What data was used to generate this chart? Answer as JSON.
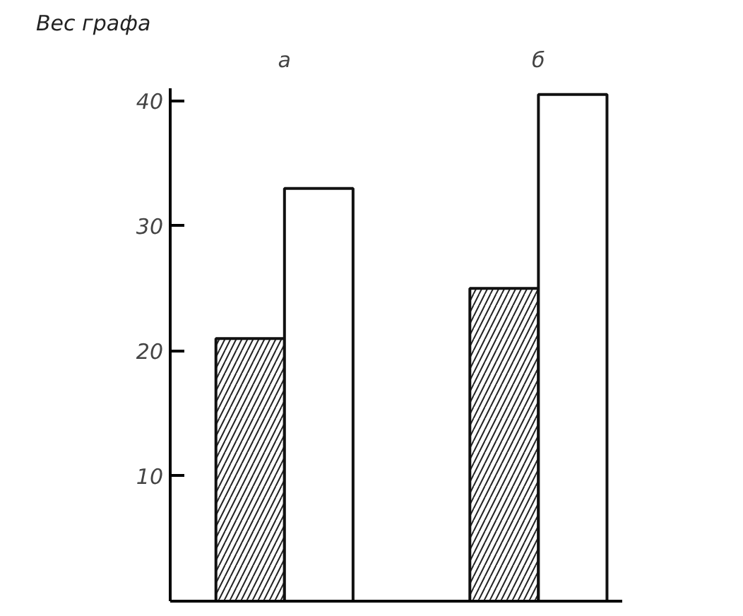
{
  "chart_data": {
    "type": "bar",
    "ylabel": "Вес графа",
    "categories": [
      "а",
      "б"
    ],
    "series": [
      {
        "color": "#ffffff",
        "values": [
          21,
          25
        ]
      },
      {
        "color": "#ffffff",
        "values": [
          33,
          40.5
        ]
      }
    ],
    "ylim": [
      0,
      41
    ],
    "yticks": [
      10,
      20,
      30,
      40
    ],
    "grid": false
  }
}
